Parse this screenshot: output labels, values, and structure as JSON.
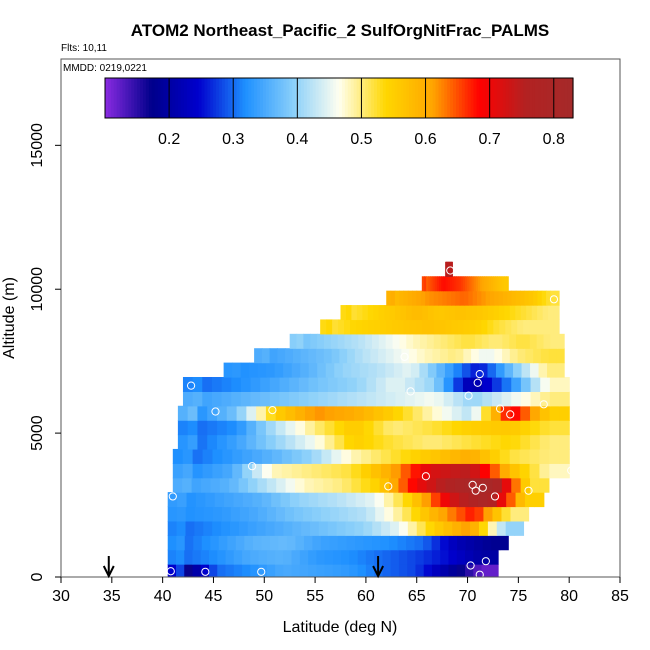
{
  "chart_data": {
    "type": "heatmap",
    "title": "ATOM2 Northeast_Pacific_2 SulfOrgNitFrac_PALMS",
    "flights_label": "Flts: 10,11",
    "dates_label": "MMDD: 0219,0221",
    "xlabel": "Latitude (deg N)",
    "ylabel": "Altitude (m)",
    "xlim": [
      30,
      85
    ],
    "ylim": [
      0,
      18000
    ],
    "x_ticks": [
      30,
      35,
      40,
      45,
      50,
      55,
      60,
      65,
      70,
      75,
      80,
      85
    ],
    "y_ticks": [
      0,
      5000,
      10000,
      15000
    ],
    "colorbar": {
      "range": [
        0.1,
        0.83
      ],
      "ticks": [
        0.2,
        0.3,
        0.4,
        0.5,
        0.6,
        0.7,
        0.8
      ],
      "colors": [
        "#8a2be2",
        "#00008b",
        "#0000cd",
        "#1e90ff",
        "#87cefa",
        "#fffff0",
        "#ffd700",
        "#ffa500",
        "#ff0000",
        "#b22222",
        "#a52a2a"
      ]
    },
    "arrow_latitudes": [
      34.7,
      61.2
    ],
    "layers": [
      {
        "alt": 200,
        "lat_start": 40.5,
        "lat_end": 73.0,
        "values": [
          0.15,
          0.3,
          0.32,
          0.35,
          0.34,
          0.33,
          0.3,
          0.28,
          0.2,
          0.12
        ]
      },
      {
        "alt": 700,
        "lat_start": 40.5,
        "lat_end": 73.0,
        "values": [
          0.3,
          0.32,
          0.35,
          0.36,
          0.33,
          0.32,
          0.3,
          0.28,
          0.25,
          0.2
        ]
      },
      {
        "alt": 1200,
        "lat_start": 40.5,
        "lat_end": 74.0,
        "values": [
          0.3,
          0.33,
          0.36,
          0.37,
          0.34,
          0.33,
          0.32,
          0.3,
          0.22,
          0.18
        ]
      },
      {
        "alt": 1700,
        "lat_start": 40.5,
        "lat_end": 75.5,
        "values": [
          0.3,
          0.32,
          0.34,
          0.36,
          0.38,
          0.4,
          0.45,
          0.55,
          0.62,
          0.4
        ]
      },
      {
        "alt": 2200,
        "lat_start": 40.5,
        "lat_end": 76.0,
        "values": [
          0.32,
          0.33,
          0.35,
          0.38,
          0.4,
          0.42,
          0.5,
          0.6,
          0.68,
          0.5
        ]
      },
      {
        "alt": 2700,
        "lat_start": 40.5,
        "lat_end": 77.5,
        "values": [
          0.32,
          0.34,
          0.36,
          0.4,
          0.42,
          0.45,
          0.55,
          0.72,
          0.8,
          0.55
        ]
      },
      {
        "alt": 3200,
        "lat_start": 41.0,
        "lat_end": 78.0,
        "values": [
          0.34,
          0.36,
          0.42,
          0.48,
          0.5,
          0.55,
          0.7,
          0.78,
          0.82,
          0.52
        ]
      },
      {
        "alt": 3700,
        "lat_start": 41.0,
        "lat_end": 80.0,
        "values": [
          0.32,
          0.35,
          0.48,
          0.5,
          0.52,
          0.6,
          0.72,
          0.75,
          0.58,
          0.48
        ]
      },
      {
        "alt": 4200,
        "lat_start": 41.0,
        "lat_end": 80.0,
        "values": [
          0.3,
          0.33,
          0.36,
          0.4,
          0.48,
          0.52,
          0.56,
          0.6,
          0.52,
          0.5
        ]
      },
      {
        "alt": 4700,
        "lat_start": 41.5,
        "lat_end": 80.0,
        "values": [
          0.3,
          0.34,
          0.4,
          0.46,
          0.55,
          0.52,
          0.5,
          0.52,
          0.54,
          0.5
        ]
      },
      {
        "alt": 5200,
        "lat_start": 41.5,
        "lat_end": 80.0,
        "values": [
          0.3,
          0.32,
          0.42,
          0.5,
          0.56,
          0.5,
          0.52,
          0.55,
          0.56,
          0.52
        ]
      },
      {
        "alt": 5700,
        "lat_start": 41.5,
        "lat_end": 80.0,
        "values": [
          0.32,
          0.38,
          0.55,
          0.62,
          0.6,
          0.55,
          0.48,
          0.42,
          0.7,
          0.55
        ]
      },
      {
        "alt": 6200,
        "lat_start": 42.0,
        "lat_end": 80.0,
        "values": [
          0.34,
          0.36,
          0.38,
          0.4,
          0.42,
          0.44,
          0.46,
          0.4,
          0.45,
          0.5
        ]
      },
      {
        "alt": 6700,
        "lat_start": 42.0,
        "lat_end": 80.0,
        "values": [
          0.3,
          0.32,
          0.35,
          0.38,
          0.4,
          0.45,
          0.4,
          0.2,
          0.32,
          0.48
        ]
      },
      {
        "alt": 7200,
        "lat_start": 46.0,
        "lat_end": 79.5,
        "values": [
          0.32,
          0.33,
          0.36,
          0.4,
          0.42,
          0.45,
          0.35,
          0.25,
          0.38,
          0.5
        ]
      },
      {
        "alt": 7700,
        "lat_start": 49.0,
        "lat_end": 79.5,
        "values": [
          0.34,
          0.36,
          0.38,
          0.42,
          0.45,
          0.48,
          0.5,
          0.45,
          0.5,
          0.52
        ]
      },
      {
        "alt": 8200,
        "lat_start": 52.5,
        "lat_end": 79.5,
        "values": [
          0.38,
          0.4,
          0.42,
          0.45,
          0.48,
          0.5,
          0.52,
          0.5,
          0.52,
          0.5
        ]
      },
      {
        "alt": 8700,
        "lat_start": 55.5,
        "lat_end": 79.0,
        "values": [
          0.52,
          0.54,
          0.55,
          0.56,
          0.57,
          0.56,
          0.55,
          0.52,
          0.5,
          0.5
        ]
      },
      {
        "alt": 9200,
        "lat_start": 57.5,
        "lat_end": 79.0,
        "values": [
          0.52,
          0.54,
          0.56,
          0.58,
          0.56,
          0.57,
          0.56,
          0.54,
          0.52,
          0.5
        ]
      },
      {
        "alt": 9700,
        "lat_start": 62.0,
        "lat_end": 79.0,
        "values": [
          0.58,
          0.6,
          0.62,
          0.63,
          0.64,
          0.62,
          0.6,
          0.58,
          0.56,
          0.52
        ]
      },
      {
        "alt": 10200,
        "lat_start": 65.5,
        "lat_end": 74.0,
        "values": [
          0.64,
          0.66,
          0.68,
          0.67,
          0.66,
          0.64,
          0.62,
          0.6,
          0.58,
          0.56
        ]
      },
      {
        "alt": 10700,
        "lat_start": 67.8,
        "lat_end": 68.5,
        "values": [
          0.75,
          0.75,
          0.75,
          0.75,
          0.75,
          0.75,
          0.75,
          0.75,
          0.75,
          0.75
        ]
      }
    ],
    "samples": [
      {
        "lat": 40.8,
        "alt": 200
      },
      {
        "lat": 44.2,
        "alt": 180
      },
      {
        "lat": 49.7,
        "alt": 180
      },
      {
        "lat": 70.3,
        "alt": 400
      },
      {
        "lat": 71.8,
        "alt": 550
      },
      {
        "lat": 71.2,
        "alt": 80
      },
      {
        "lat": 41.0,
        "alt": 2800
      },
      {
        "lat": 48.8,
        "alt": 3850
      },
      {
        "lat": 62.2,
        "alt": 3150
      },
      {
        "lat": 65.9,
        "alt": 3500
      },
      {
        "lat": 70.5,
        "alt": 3200
      },
      {
        "lat": 71.5,
        "alt": 3100
      },
      {
        "lat": 70.8,
        "alt": 3000
      },
      {
        "lat": 72.7,
        "alt": 2800
      },
      {
        "lat": 76.0,
        "alt": 3000
      },
      {
        "lat": 80.2,
        "alt": 3700
      },
      {
        "lat": 45.2,
        "alt": 5750
      },
      {
        "lat": 50.8,
        "alt": 5800
      },
      {
        "lat": 73.2,
        "alt": 5850
      },
      {
        "lat": 74.2,
        "alt": 5650
      },
      {
        "lat": 77.5,
        "alt": 6000
      },
      {
        "lat": 42.8,
        "alt": 6650
      },
      {
        "lat": 64.4,
        "alt": 6450
      },
      {
        "lat": 70.1,
        "alt": 6300
      },
      {
        "lat": 71.0,
        "alt": 6750
      },
      {
        "lat": 71.2,
        "alt": 7050
      },
      {
        "lat": 63.8,
        "alt": 7650
      },
      {
        "lat": 78.5,
        "alt": 9650
      },
      {
        "lat": 68.3,
        "alt": 10650
      }
    ]
  }
}
